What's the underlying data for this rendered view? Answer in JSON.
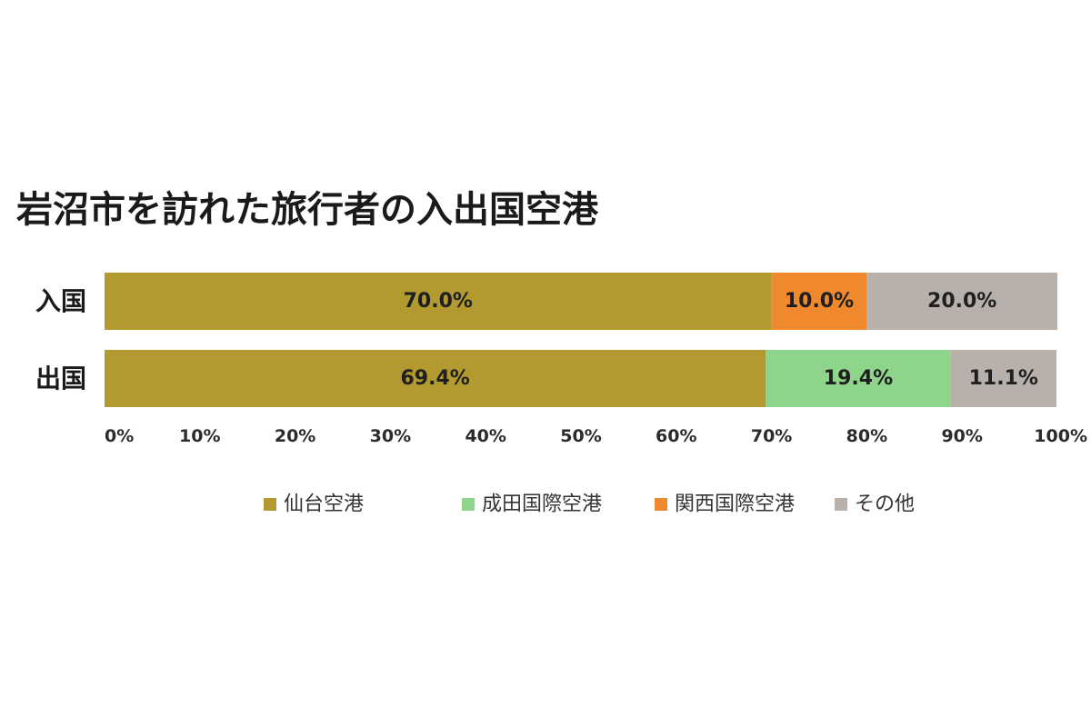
{
  "chart_data": {
    "type": "bar",
    "orientation": "horizontal",
    "stacked": true,
    "title": "岩沼市を訪れた旅行者の入出国空港",
    "categories": [
      "入国",
      "出国"
    ],
    "series": [
      {
        "name": "仙台空港",
        "color": "#b39a30",
        "values": [
          70.0,
          69.4
        ]
      },
      {
        "name": "成田国際空港",
        "color": "#8fd48b",
        "values": [
          0,
          19.4
        ]
      },
      {
        "name": "関西国際空港",
        "color": "#f0892d",
        "values": [
          10.0,
          0
        ]
      },
      {
        "name": "その他",
        "color": "#b8b0ab",
        "values": [
          20.0,
          11.1
        ]
      }
    ],
    "data_labels": [
      [
        "70.0%",
        "",
        "10.0%",
        "20.0%"
      ],
      [
        "69.4%",
        "19.4%",
        "",
        "11.1%"
      ]
    ],
    "xlim": [
      0,
      100
    ],
    "xticks": [
      0,
      10,
      20,
      30,
      40,
      50,
      60,
      70,
      80,
      90,
      100
    ],
    "xtick_labels": [
      "0%",
      "10%",
      "20%",
      "30%",
      "40%",
      "50%",
      "60%",
      "70%",
      "80%",
      "90%",
      "100%"
    ],
    "grid": false,
    "legend_position": "bottom"
  }
}
